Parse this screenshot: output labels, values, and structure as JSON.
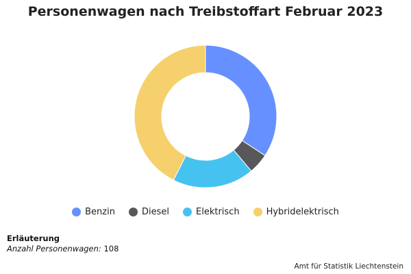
{
  "chart_data": {
    "type": "pie",
    "title": "Personenwagen nach Treibstoffart Februar 2023",
    "categories": [
      "Benzin",
      "Diesel",
      "Elektrisch",
      "Hybridelektrisch"
    ],
    "values": [
      37,
      5,
      20,
      46
    ],
    "colors": [
      "#6690ff",
      "#58585b",
      "#46c2f0",
      "#f5d06c"
    ],
    "legend_position": "bottom",
    "donut": true
  },
  "note": {
    "heading": "Erläuterung",
    "label": "Anzahl Personenwagen:",
    "value": "108"
  },
  "source": "Amt für Statistik Liechtenstein"
}
